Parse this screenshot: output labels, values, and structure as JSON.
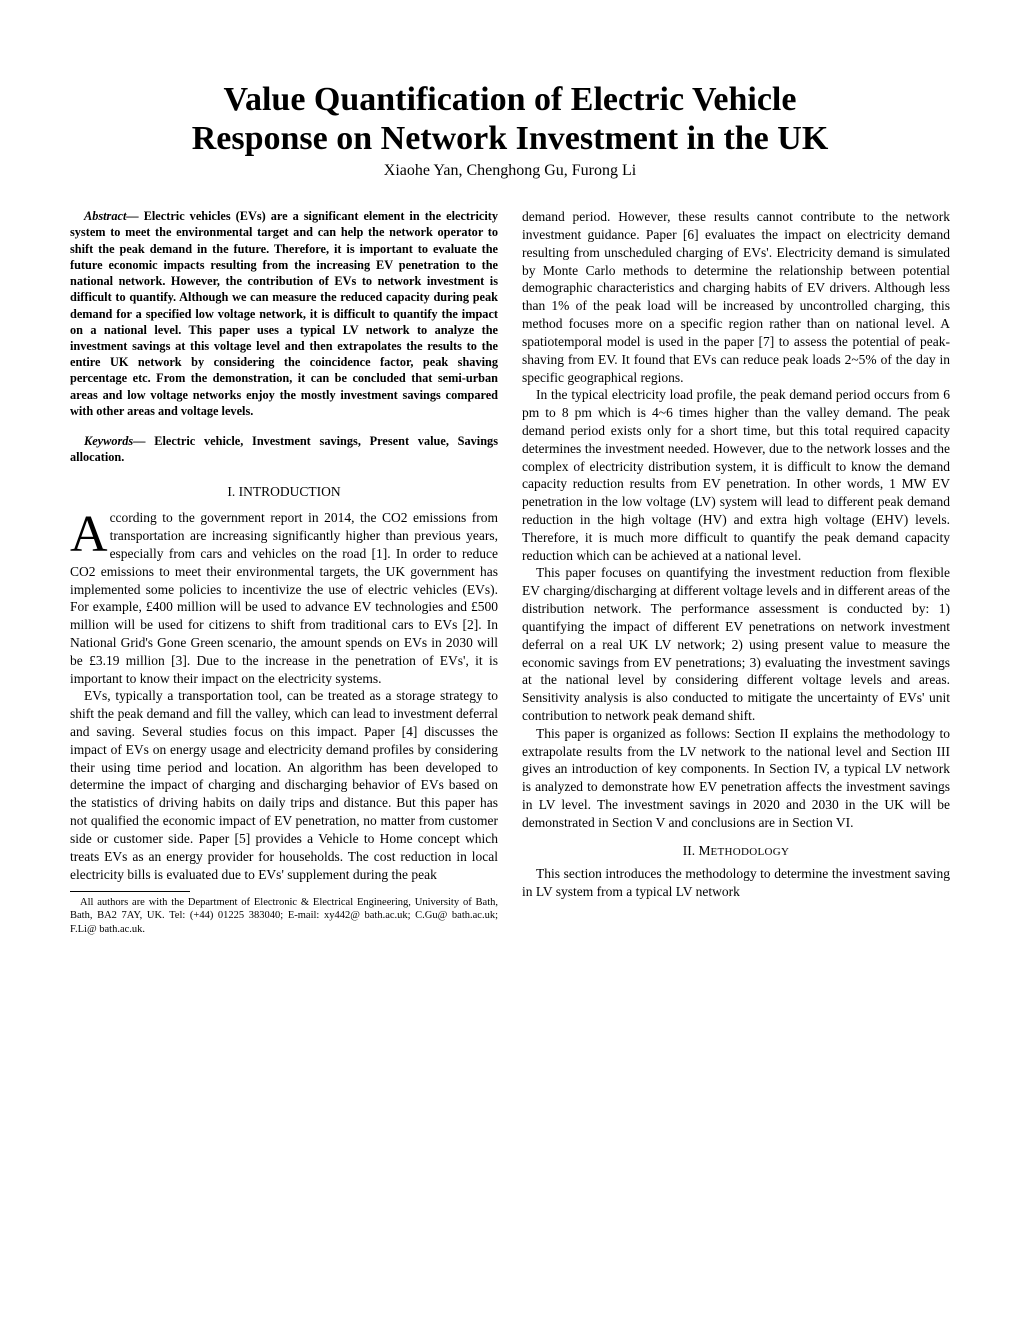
{
  "title_line1": "Value Quantification of Electric Vehicle",
  "title_line2": "Response on Network Investment in the UK",
  "authors": "Xiaohe Yan, Chenghong Gu, Furong Li",
  "abstract_label": "Abstract—",
  "abstract_text": " Electric vehicles (EVs) are a significant element in the electricity system to meet the environmental target and can help the network operator to shift the peak demand in the future. Therefore, it is important to evaluate the future economic impacts resulting from the increasing EV penetration to the national network. However, the contribution of EVs to network investment is difficult to quantify. Although we can measure the reduced capacity during peak demand for a specified low voltage network, it is difficult to quantify the impact on a national level. This paper uses a typical LV network to analyze the investment savings at this voltage level and then extrapolates the results to the entire UK network by considering the coincidence factor, peak shaving percentage etc. From the demonstration, it can be concluded that semi-urban areas and low voltage networks enjoy the mostly investment savings compared with other areas and voltage levels.",
  "keywords_label": "Keywords—",
  "keywords_text": " Electric vehicle, Investment savings, Present value, Savings allocation.",
  "section1_heading": "I.  INTRODUCTION",
  "dropcap": "A",
  "intro_p1": "ccording to the government report in 2014, the CO2 emissions from transportation are increasing significantly higher than previous years, especially from cars and vehicles on the road [1]. In order to reduce CO2 emissions to meet their environmental targets, the UK government has implemented some policies to incentivize the use of electric vehicles (EVs). For example, £400 million will be used to advance EV technologies and £500 million will be used for citizens to shift from traditional cars to EVs [2]. In National Grid's Gone Green scenario, the amount spends on EVs in 2030 will be £3.19 million  [3]. Due to the increase in the penetration of EVs', it is important to know their impact on the electricity systems.",
  "intro_p2": "EVs, typically a transportation tool, can be treated as a storage strategy to shift the peak demand and fill the valley, which can lead to investment deferral and saving. Several studies focus on this impact.  Paper [4] discusses the impact of EVs on energy usage and electricity demand profiles by considering their using time period and location. An algorithm has been developed to determine the impact of charging and discharging behavior of EVs based on the statistics of driving habits on daily trips and distance. But this paper has not qualified the economic impact of EV penetration, no matter from customer side or customer side. Paper [5] provides a Vehicle to Home concept which treats EVs as an energy provider for households. The cost reduction in local electricity bills is evaluated due to EVs' supplement during the peak",
  "footnote": "All authors are with the Department of Electronic & Electrical Engineering, University of Bath, Bath, BA2 7AY, UK. Tel: (+44) 01225 383040; E-mail: xy442@ bath.ac.uk; C.Gu@ bath.ac.uk; F.Li@ bath.ac.uk.",
  "col2_p1": "demand period. However, these results cannot contribute to the network investment guidance. Paper [6] evaluates the impact on electricity demand resulting from unscheduled charging of EVs'. Electricity demand is simulated by Monte Carlo methods to determine the relationship between potential demographic characteristics and charging habits of EV drivers. Although less than 1% of the peak load will be increased by uncontrolled charging, this method focuses more on a specific region rather than on national level. A spatiotemporal model is used in the paper [7] to assess the potential of peak-shaving from EV. It found that EVs can reduce peak loads 2~5% of the day in specific geographical regions.",
  "col2_p2": "In the typical electricity load profile, the peak demand period occurs from 6 pm to 8 pm which is 4~6 times higher than the valley demand. The peak demand period exists only for a short time, but this total required capacity determines the investment needed. However, due to the network losses and the complex of electricity distribution system, it is difficult to know the demand capacity reduction results from EV penetration. In other words, 1 MW EV penetration in the low voltage (LV) system will lead to different peak demand reduction in the high voltage (HV) and extra high voltage (EHV) levels. Therefore, it is much more difficult to quantify the peak demand capacity reduction which can be achieved at a national level.",
  "col2_p3": "This paper focuses on quantifying the investment reduction from flexible EV charging/discharging at different voltage levels and in different areas of the distribution network. The performance assessment is conducted by: 1) quantifying the impact of different EV penetrations on network investment deferral on a real UK LV network; 2) using present value to measure the economic savings from EV penetrations; 3) evaluating the investment savings at the national level by considering different voltage levels and areas. Sensitivity analysis is also conducted to mitigate the uncertainty of EVs' unit contribution to network peak demand shift.",
  "col2_p4": " This paper is organized as follows: Section II explains the methodology to extrapolate results from the LV network to the national level and Section III gives an introduction of key components. In Section IV, a typical LV network is analyzed to demonstrate how EV penetration affects the investment savings in LV level. The investment savings in 2020 and 2030 in the UK will be demonstrated in Section V and conclusions are in Section VI.",
  "section2_prefix": "II. M",
  "section2_word": "ETHODOLOGY",
  "col2_p5": "This section introduces the methodology to determine the investment saving in LV system from a typical LV network"
}
